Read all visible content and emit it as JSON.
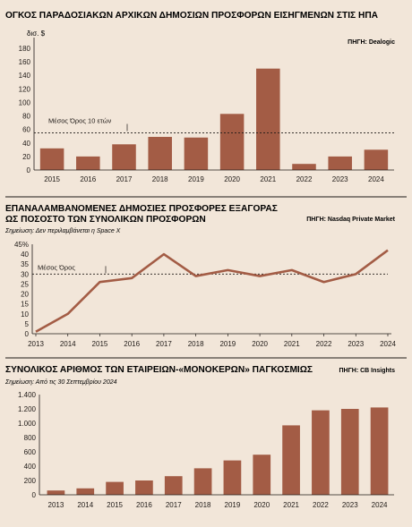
{
  "colors": {
    "bar": "#a35c45",
    "line": "#a35c45",
    "text": "#1f1a17",
    "background": "#f2e6d9",
    "rule": "#1f1a17"
  },
  "chart_data": [
    {
      "type": "bar",
      "title": "ΟΓΚΟΣ ΠΑΡΑΔΟΣΙΑΚΩΝ ΑΡΧΙΚΩΝ ΔΗΜΟΣΙΩΝ ΠΡΟΣΦΟΡΩΝ ΕΙΣΗΓΜΕΝΩΝ ΣΤΙΣ ΗΠΑ",
      "unit": "δισ. $",
      "source": "ΠΗΓΗ: Dealogic",
      "categories": [
        "2015",
        "2016",
        "2017",
        "2018",
        "2019",
        "2020",
        "2021",
        "2022",
        "2023",
        "2024"
      ],
      "values": [
        32,
        20,
        38,
        49,
        48,
        83,
        150,
        9,
        20,
        30
      ],
      "ylim": [
        0,
        180
      ],
      "yticks": [
        0,
        20,
        40,
        60,
        80,
        100,
        120,
        140,
        160,
        180
      ],
      "reference": {
        "label": "Μέσος Όρος 10 ετών",
        "value": 55
      },
      "grid": false
    },
    {
      "type": "line",
      "title_line1": "ΕΠΑΝΑΛΑΜΒΑΝΟΜΕΝΕΣ ΔΗΜΟΣΙΕΣ ΠΡΟΣΦΟΡΕΣ ΕΞΑΓΟΡΑΣ",
      "title_line2": "ΩΣ ΠΟΣΟΣΤΟ ΤΩΝ ΣΥΝΟΛΙΚΩΝ ΠΡΟΣΦΟΡΩΝ",
      "note": "Σημείωση: Δεν περιλαμβάνεται η Space X",
      "source": "ΠΗΓΗ: Nasdaq Private Market",
      "categories": [
        "2013",
        "2014",
        "2015",
        "2016",
        "2017",
        "2018",
        "2019",
        "2020",
        "2021",
        "2022",
        "2023",
        "2024"
      ],
      "values": [
        1,
        10,
        26,
        28,
        40,
        29,
        32,
        29,
        32,
        26,
        30,
        42
      ],
      "ylim": [
        0,
        45
      ],
      "ytick_labels": [
        "45%",
        "40",
        "35",
        "30",
        "25",
        "20",
        "15",
        "10",
        "5",
        "0"
      ],
      "yticks": [
        45,
        40,
        35,
        30,
        25,
        20,
        15,
        10,
        5,
        0
      ],
      "reference": {
        "label": "Μέσος Όρος",
        "value": 30
      },
      "grid": false
    },
    {
      "type": "bar",
      "title": "ΣΥΝΟΛΙΚΟΣ ΑΡΙΘΜΟΣ ΤΩΝ ΕΤΑΙΡΕΙΩΝ-«ΜΟΝΟΚΕΡΩΝ» ΠΑΓΚΟΣΜΙΩΣ",
      "note": "Σημείωση: Από τις 30 Σεπτεμβρίου 2024",
      "source": "ΠΗΓΗ: CB Insights",
      "categories": [
        "2013",
        "2014",
        "2015",
        "2016",
        "2017",
        "2018",
        "2019",
        "2020",
        "2021",
        "2022",
        "2023",
        "2024"
      ],
      "values": [
        60,
        90,
        180,
        200,
        260,
        370,
        480,
        560,
        970,
        1180,
        1200,
        1220
      ],
      "ylim": [
        0,
        1400
      ],
      "yticks": [
        0,
        200,
        400,
        600,
        800,
        1000,
        1200,
        1400
      ],
      "ytick_labels": [
        "0",
        "200",
        "400",
        "600",
        "800",
        "1.000",
        "1.200",
        "1.400"
      ],
      "grid": false
    }
  ]
}
